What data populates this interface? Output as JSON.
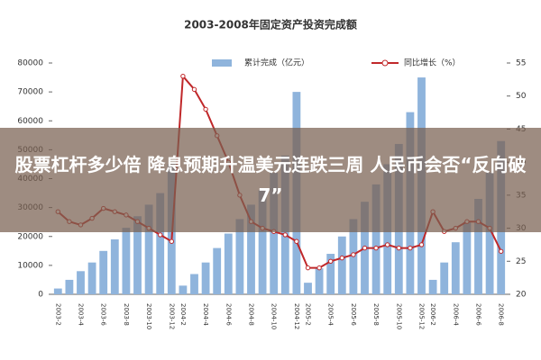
{
  "chart_data": {
    "type": "bar-line",
    "title": "2003-2008年固定资产投资完成额",
    "categories": [
      "2003-2",
      null,
      "2003-4",
      null,
      "2003-6",
      null,
      "2003-8",
      null,
      "2003-10",
      null,
      "2003-12",
      "2004-2",
      null,
      "2004-4",
      null,
      "2004-6",
      null,
      "2004-8",
      null,
      "2004-10",
      null,
      "2004-12",
      "2005-2",
      null,
      "2005-4",
      null,
      "2005-6",
      null,
      "2005-8",
      null,
      "2005-10",
      null,
      "2005-12",
      "2006-2",
      null,
      "2006-4",
      null,
      "2006-6",
      null,
      "2006-8"
    ],
    "series": [
      {
        "name": "累计完成（亿元）",
        "color": "#8fb4dc",
        "kind": "bar",
        "values": [
          2000,
          5000,
          8000,
          11000,
          15000,
          19000,
          23000,
          27000,
          31000,
          35000,
          45000,
          3000,
          7000,
          11000,
          16000,
          21000,
          26000,
          31000,
          36000,
          42000,
          48000,
          70000,
          4000,
          9000,
          14000,
          20000,
          26000,
          32000,
          38000,
          45000,
          52000,
          63000,
          75000,
          5000,
          11000,
          18000,
          25000,
          33000,
          42000,
          53000
        ]
      },
      {
        "name": "同比增长（%）",
        "color": "#c0282a",
        "kind": "line",
        "axis": "y2",
        "values": [
          32.5,
          31,
          30.5,
          31.5,
          33,
          32.5,
          32,
          31,
          30,
          29,
          28,
          53,
          51,
          48,
          44,
          40,
          35,
          31,
          30,
          29.5,
          29,
          28,
          24,
          24,
          25,
          25.5,
          26,
          27,
          27,
          27.5,
          27,
          27,
          27.5,
          32.5,
          29.5,
          30,
          31,
          31,
          30,
          26.5
        ]
      }
    ],
    "ylim": [
      0,
      80000
    ],
    "yticks": [
      0,
      10000,
      20000,
      30000,
      40000,
      50000,
      60000,
      70000,
      80000
    ],
    "y2lim": [
      20,
      55
    ],
    "y2ticks": [
      20,
      25,
      30,
      35,
      40,
      45,
      50,
      55
    ],
    "annotations": [
      "股票杠杆多少倍 降息预期升温美元连跌三周 人民币会否“反向破7”"
    ]
  }
}
